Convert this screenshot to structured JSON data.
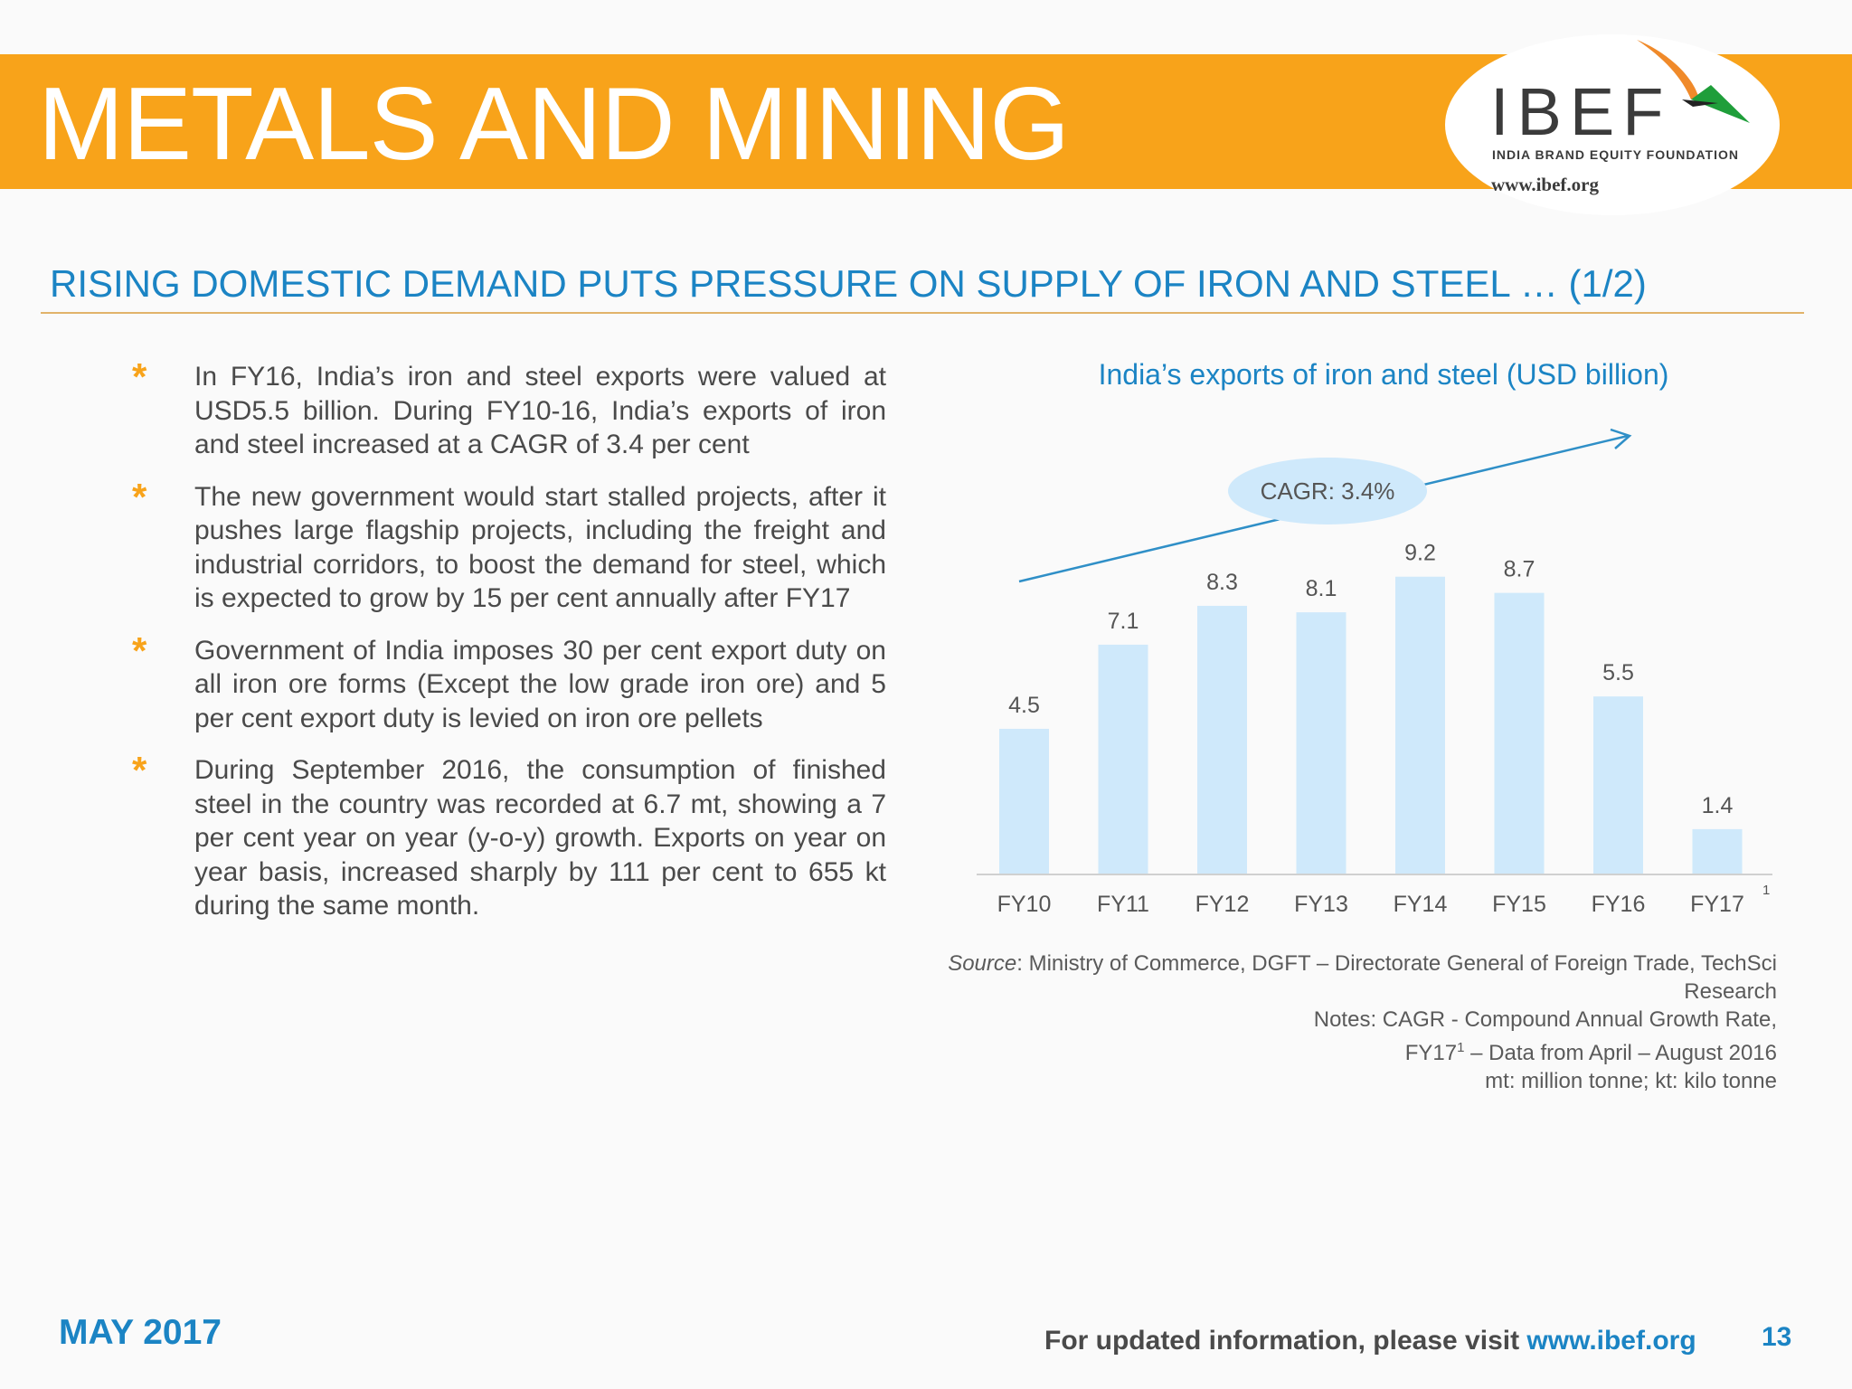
{
  "header": {
    "title": "METALS AND MINING",
    "logo_name": "IBEF",
    "logo_tagline": "INDIA BRAND EQUITY FOUNDATION",
    "logo_url": "www.ibef.org"
  },
  "subtitle": "RISING DOMESTIC DEMAND PUTS PRESSURE ON SUPPLY OF IRON AND STEEL … (1/2)",
  "bullets": [
    "In FY16, India’s iron and steel exports were valued at USD5.5 billion. During FY10-16, India’s exports of iron and steel increased at a CAGR of 3.4 per cent",
    "The new government would start stalled projects, after it pushes large flagship projects, including the freight and industrial corridors, to boost the demand for steel, which is expected to grow by 15 per cent annually after FY17",
    "Government of India imposes 30 per cent export duty on all iron ore forms (Except the low grade iron ore) and 5 per cent export duty is levied on iron ore pellets",
    "During September 2016, the consumption of finished steel in the country was recorded at 6.7 mt, showing a 7 per cent year on year (y-o-y) growth. Exports on year on year basis, increased sharply by 111 per cent to 655 kt during the same month."
  ],
  "bullet_marker": "*",
  "chart_data": {
    "type": "bar",
    "title": "India’s exports of iron and steel (USD billion)",
    "categories": [
      "FY10",
      "FY11",
      "FY12",
      "FY13",
      "FY14",
      "FY15",
      "FY16",
      "FY17"
    ],
    "values": [
      4.5,
      7.1,
      8.3,
      8.1,
      9.2,
      8.7,
      5.5,
      1.4
    ],
    "data_labels": [
      "4.5",
      "7.1",
      "8.3",
      "8.1",
      "9.2",
      "8.7",
      "5.5",
      "1.4"
    ],
    "last_category_footnote": "1",
    "annotation": "CAGR: 3.4%",
    "xlabel": "",
    "ylabel": "",
    "ylim": [
      0,
      9.5
    ],
    "grid": false,
    "bar_color": "#cfe9fb",
    "trend_color": "#2f8fc7",
    "annotation_bg": "#cfe9fb"
  },
  "notes": {
    "source_label": "Source",
    "source_text": ": Ministry of Commerce, DGFT – Directorate General of Foreign Trade, TechSci Research",
    "notes_line1": "Notes: CAGR - Compound Annual Growth Rate,",
    "notes_line2_prefix": "FY17",
    "notes_line2_sup": "1",
    "notes_line2_suffix": " – Data from April – August 2016",
    "notes_line3": "mt: million tonne; kt: kilo tonne"
  },
  "footer": {
    "date": "MAY 2017",
    "visit_text": "For updated information, please visit ",
    "visit_url": "www.ibef.org",
    "page_number": "13"
  },
  "colors": {
    "banner": "#f8a31a",
    "accent_blue": "#1b84c4",
    "body_text": "#4a4a4a"
  }
}
